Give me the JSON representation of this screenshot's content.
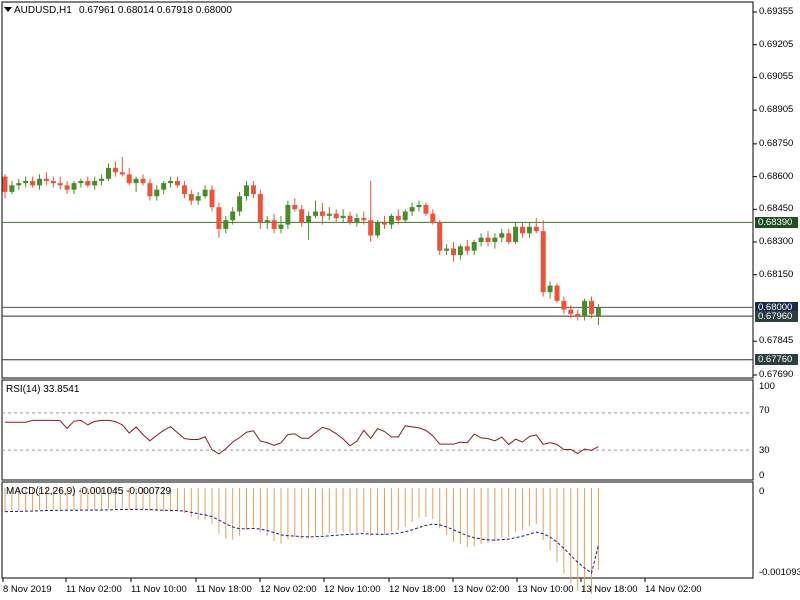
{
  "header": {
    "symbol": "AUDUSD,H1",
    "ohlc": "0.67961 0.68014 0.67918 0.68000"
  },
  "price_axis": {
    "ticks": [
      "0.69355",
      "0.69205",
      "0.69055",
      "0.68905",
      "0.68750",
      "0.68600",
      "0.68450",
      "0.68300",
      "0.68150",
      "0.67845",
      "0.67690"
    ],
    "tick_values": [
      0.69355,
      0.69205,
      0.69055,
      0.68905,
      0.6875,
      0.686,
      0.6845,
      0.683,
      0.6815,
      0.67845,
      0.6769
    ],
    "levels": [
      {
        "label": "0.68390",
        "value": 0.6839,
        "box_color": "#1f4f1f",
        "line_color": "#3a7a2a"
      },
      {
        "label": "0.68000",
        "value": 0.68,
        "box_color": "#1b2a4a",
        "line_color": "#555555"
      },
      {
        "label": "0.67960",
        "value": 0.6796,
        "box_color": "#2a3f3f",
        "line_color": "#333333"
      },
      {
        "label": "0.67760",
        "value": 0.6776,
        "box_color": "#2a3f3f",
        "line_color": "#333333"
      }
    ]
  },
  "rsi": {
    "title": "RSI(14) 33.8541",
    "ticks": [
      "100",
      "70",
      "30",
      "0"
    ],
    "levels": [
      70,
      30
    ]
  },
  "macd": {
    "title": "MACD(12,26,9) -0.001045 -0.000729",
    "ticks": [
      "0",
      "-0.001093"
    ]
  },
  "time_axis": [
    "8 Nov 2019",
    "11 Nov 02:00",
    "11 Nov 10:00",
    "11 Nov 18:00",
    "12 Nov 02:00",
    "12 Nov 10:00",
    "12 Nov 18:00",
    "13 Nov 02:00",
    "13 Nov 10:00",
    "13 Nov 18:00",
    "14 Nov 02:00"
  ],
  "colors": {
    "bull": "#4a8a2a",
    "bear": "#e8553a",
    "rsi_line": "#8b1a1a",
    "macd_hist": "#e0a060",
    "macd_signal": "#1a1a8a"
  },
  "chart_data": {
    "type": "candlestick",
    "symbol": "AUDUSD",
    "timeframe": "H1",
    "ylim": [
      0.6769,
      0.69355
    ],
    "candles": [
      [
        0.686,
        0.68612,
        0.685,
        0.6853
      ],
      [
        0.6853,
        0.6858,
        0.6852,
        0.6856
      ],
      [
        0.6856,
        0.6859,
        0.6854,
        0.6857
      ],
      [
        0.6857,
        0.686,
        0.6855,
        0.6858
      ],
      [
        0.6858,
        0.686,
        0.6855,
        0.6856
      ],
      [
        0.6856,
        0.6861,
        0.6854,
        0.6859
      ],
      [
        0.6859,
        0.6862,
        0.6856,
        0.6858
      ],
      [
        0.6858,
        0.686,
        0.6855,
        0.6857
      ],
      [
        0.6857,
        0.686,
        0.6854,
        0.6856
      ],
      [
        0.6856,
        0.6858,
        0.6852,
        0.6854
      ],
      [
        0.6854,
        0.6858,
        0.6852,
        0.6857
      ],
      [
        0.6857,
        0.6859,
        0.6855,
        0.6858
      ],
      [
        0.6858,
        0.686,
        0.6855,
        0.6856
      ],
      [
        0.6856,
        0.686,
        0.6854,
        0.6858
      ],
      [
        0.6858,
        0.6861,
        0.6856,
        0.6859
      ],
      [
        0.6859,
        0.6866,
        0.6858,
        0.6864
      ],
      [
        0.6864,
        0.6867,
        0.686,
        0.6862
      ],
      [
        0.6862,
        0.6869,
        0.686,
        0.6861
      ],
      [
        0.6861,
        0.6864,
        0.6856,
        0.6857
      ],
      [
        0.6857,
        0.686,
        0.6853,
        0.6859
      ],
      [
        0.6859,
        0.6861,
        0.6856,
        0.6857
      ],
      [
        0.6857,
        0.6859,
        0.6849,
        0.6851
      ],
      [
        0.6851,
        0.6856,
        0.6849,
        0.6854
      ],
      [
        0.6854,
        0.6858,
        0.6852,
        0.6857
      ],
      [
        0.6857,
        0.686,
        0.6855,
        0.6858
      ],
      [
        0.6858,
        0.686,
        0.6855,
        0.6856
      ],
      [
        0.6856,
        0.6858,
        0.685,
        0.6852
      ],
      [
        0.6852,
        0.6854,
        0.6847,
        0.6849
      ],
      [
        0.6849,
        0.6853,
        0.6847,
        0.6851
      ],
      [
        0.6851,
        0.6856,
        0.685,
        0.6854
      ],
      [
        0.6854,
        0.6856,
        0.6844,
        0.6846
      ],
      [
        0.6846,
        0.6848,
        0.6832,
        0.6836
      ],
      [
        0.6836,
        0.6842,
        0.6834,
        0.684
      ],
      [
        0.684,
        0.6846,
        0.6838,
        0.6844
      ],
      [
        0.6844,
        0.6853,
        0.6842,
        0.6851
      ],
      [
        0.6851,
        0.6858,
        0.6849,
        0.6856
      ],
      [
        0.6856,
        0.6858,
        0.685,
        0.6852
      ],
      [
        0.6852,
        0.6854,
        0.6836,
        0.6839
      ],
      [
        0.6839,
        0.6842,
        0.6836,
        0.684
      ],
      [
        0.684,
        0.6843,
        0.6834,
        0.6836
      ],
      [
        0.6836,
        0.6842,
        0.6834,
        0.6838
      ],
      [
        0.6838,
        0.6849,
        0.6836,
        0.6847
      ],
      [
        0.6847,
        0.685,
        0.6844,
        0.6845
      ],
      [
        0.6845,
        0.6847,
        0.6837,
        0.6839
      ],
      [
        0.6839,
        0.6844,
        0.6831,
        0.6842
      ],
      [
        0.6842,
        0.6849,
        0.6841,
        0.6844
      ],
      [
        0.6844,
        0.6848,
        0.6838,
        0.6842
      ],
      [
        0.6842,
        0.6846,
        0.684,
        0.6843
      ],
      [
        0.6843,
        0.6845,
        0.6839,
        0.6841
      ],
      [
        0.6841,
        0.6845,
        0.6839,
        0.6842
      ],
      [
        0.6842,
        0.6844,
        0.6838,
        0.6839
      ],
      [
        0.6839,
        0.6843,
        0.6837,
        0.6841
      ],
      [
        0.6841,
        0.6844,
        0.6838,
        0.684
      ],
      [
        0.684,
        0.6858,
        0.683,
        0.6833
      ],
      [
        0.6833,
        0.684,
        0.6832,
        0.6839
      ],
      [
        0.6839,
        0.6842,
        0.6836,
        0.6838
      ],
      [
        0.6838,
        0.6843,
        0.6836,
        0.6842
      ],
      [
        0.6842,
        0.6845,
        0.6838,
        0.684
      ],
      [
        0.684,
        0.6845,
        0.6839,
        0.6844
      ],
      [
        0.6844,
        0.6848,
        0.6842,
        0.6846
      ],
      [
        0.6846,
        0.6849,
        0.6844,
        0.6847
      ],
      [
        0.6847,
        0.6848,
        0.6842,
        0.6843
      ],
      [
        0.6843,
        0.6845,
        0.6838,
        0.6839
      ],
      [
        0.6839,
        0.684,
        0.6824,
        0.6826
      ],
      [
        0.6826,
        0.6829,
        0.6824,
        0.6827
      ],
      [
        0.6827,
        0.683,
        0.6821,
        0.6824
      ],
      [
        0.6824,
        0.6829,
        0.6822,
        0.6828
      ],
      [
        0.6828,
        0.6831,
        0.6824,
        0.6826
      ],
      [
        0.6826,
        0.6831,
        0.6824,
        0.683
      ],
      [
        0.683,
        0.6834,
        0.6828,
        0.6832
      ],
      [
        0.6832,
        0.6835,
        0.6828,
        0.683
      ],
      [
        0.683,
        0.6834,
        0.6827,
        0.6832
      ],
      [
        0.6832,
        0.6836,
        0.683,
        0.6834
      ],
      [
        0.6834,
        0.6836,
        0.6829,
        0.683
      ],
      [
        0.683,
        0.6839,
        0.6829,
        0.6837
      ],
      [
        0.6837,
        0.6839,
        0.6832,
        0.6834
      ],
      [
        0.6834,
        0.6839,
        0.6832,
        0.6837
      ],
      [
        0.6837,
        0.6841,
        0.6834,
        0.6835
      ],
      [
        0.6835,
        0.684,
        0.6805,
        0.6807
      ],
      [
        0.6807,
        0.6812,
        0.6804,
        0.681
      ],
      [
        0.681,
        0.6811,
        0.6802,
        0.6803
      ],
      [
        0.6803,
        0.6805,
        0.6797,
        0.6799
      ],
      [
        0.6799,
        0.6801,
        0.6795,
        0.6797
      ],
      [
        0.6797,
        0.6799,
        0.6794,
        0.6796
      ],
      [
        0.6796,
        0.6804,
        0.6794,
        0.6803
      ],
      [
        0.6803,
        0.6805,
        0.6795,
        0.6797
      ],
      [
        0.67961,
        0.68014,
        0.67918,
        0.68
      ]
    ],
    "rsi_level": 33.8541,
    "macd_main": -0.001045,
    "macd_signal": -0.000729
  }
}
